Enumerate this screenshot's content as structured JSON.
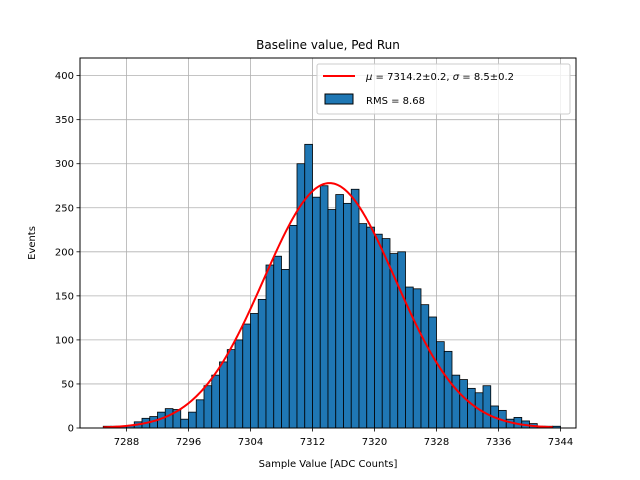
{
  "chart_data": {
    "type": "bar",
    "title": "Baseline value, Ped Run",
    "xlabel": "Sample Value [ADC Counts]",
    "ylabel": "Events",
    "xlim": [
      7282,
      7346
    ],
    "ylim": [
      0,
      420
    ],
    "grid": true,
    "legend_position": "top-right",
    "bar_color": "#1f77b4",
    "fit_color": "#ff0000",
    "xticks": [
      "7288",
      "7296",
      "7304",
      "7312",
      "7320",
      "7328",
      "7336",
      "7344"
    ],
    "yticks": [
      "0",
      "50",
      "100",
      "150",
      "200",
      "250",
      "300",
      "350",
      "400"
    ],
    "histogram": {
      "name": "RMS = 8.68",
      "bin_width": 1,
      "bin_starts": [
        7285,
        7286,
        7287,
        7288,
        7289,
        7290,
        7291,
        7292,
        7293,
        7294,
        7295,
        7296,
        7297,
        7298,
        7299,
        7300,
        7301,
        7302,
        7303,
        7304,
        7305,
        7306,
        7307,
        7308,
        7309,
        7310,
        7311,
        7312,
        7313,
        7314,
        7315,
        7316,
        7317,
        7318,
        7319,
        7320,
        7321,
        7322,
        7323,
        7324,
        7325,
        7326,
        7327,
        7328,
        7329,
        7330,
        7331,
        7332,
        7333,
        7334,
        7335,
        7336,
        7337,
        7338,
        7339,
        7340,
        7341,
        7342,
        7343
      ],
      "counts": [
        2,
        2,
        2,
        3,
        7,
        11,
        13,
        18,
        22,
        21,
        10,
        18,
        32,
        48,
        60,
        75,
        89,
        100,
        118,
        130,
        146,
        185,
        195,
        180,
        230,
        300,
        322,
        262,
        275,
        248,
        265,
        255,
        271,
        232,
        228,
        220,
        215,
        198,
        200,
        160,
        158,
        140,
        126,
        98,
        87,
        60,
        55,
        45,
        40,
        48,
        25,
        20,
        10,
        12,
        8,
        5,
        2,
        2,
        2
      ]
    },
    "fit": {
      "name": "$\\mu=7314.2\\pm0.2$, $\\sigma=8.5\\pm0.2$",
      "legend_label_mu": "μ",
      "legend_label_rest": " = 7314.2±0.2, ",
      "legend_label_sigma": "σ",
      "legend_label_rest2": " = 8.5±0.2",
      "mu": 7314.2,
      "sigma": 8.5,
      "amplitude": 278,
      "x_range": [
        7285,
        7343
      ]
    }
  }
}
